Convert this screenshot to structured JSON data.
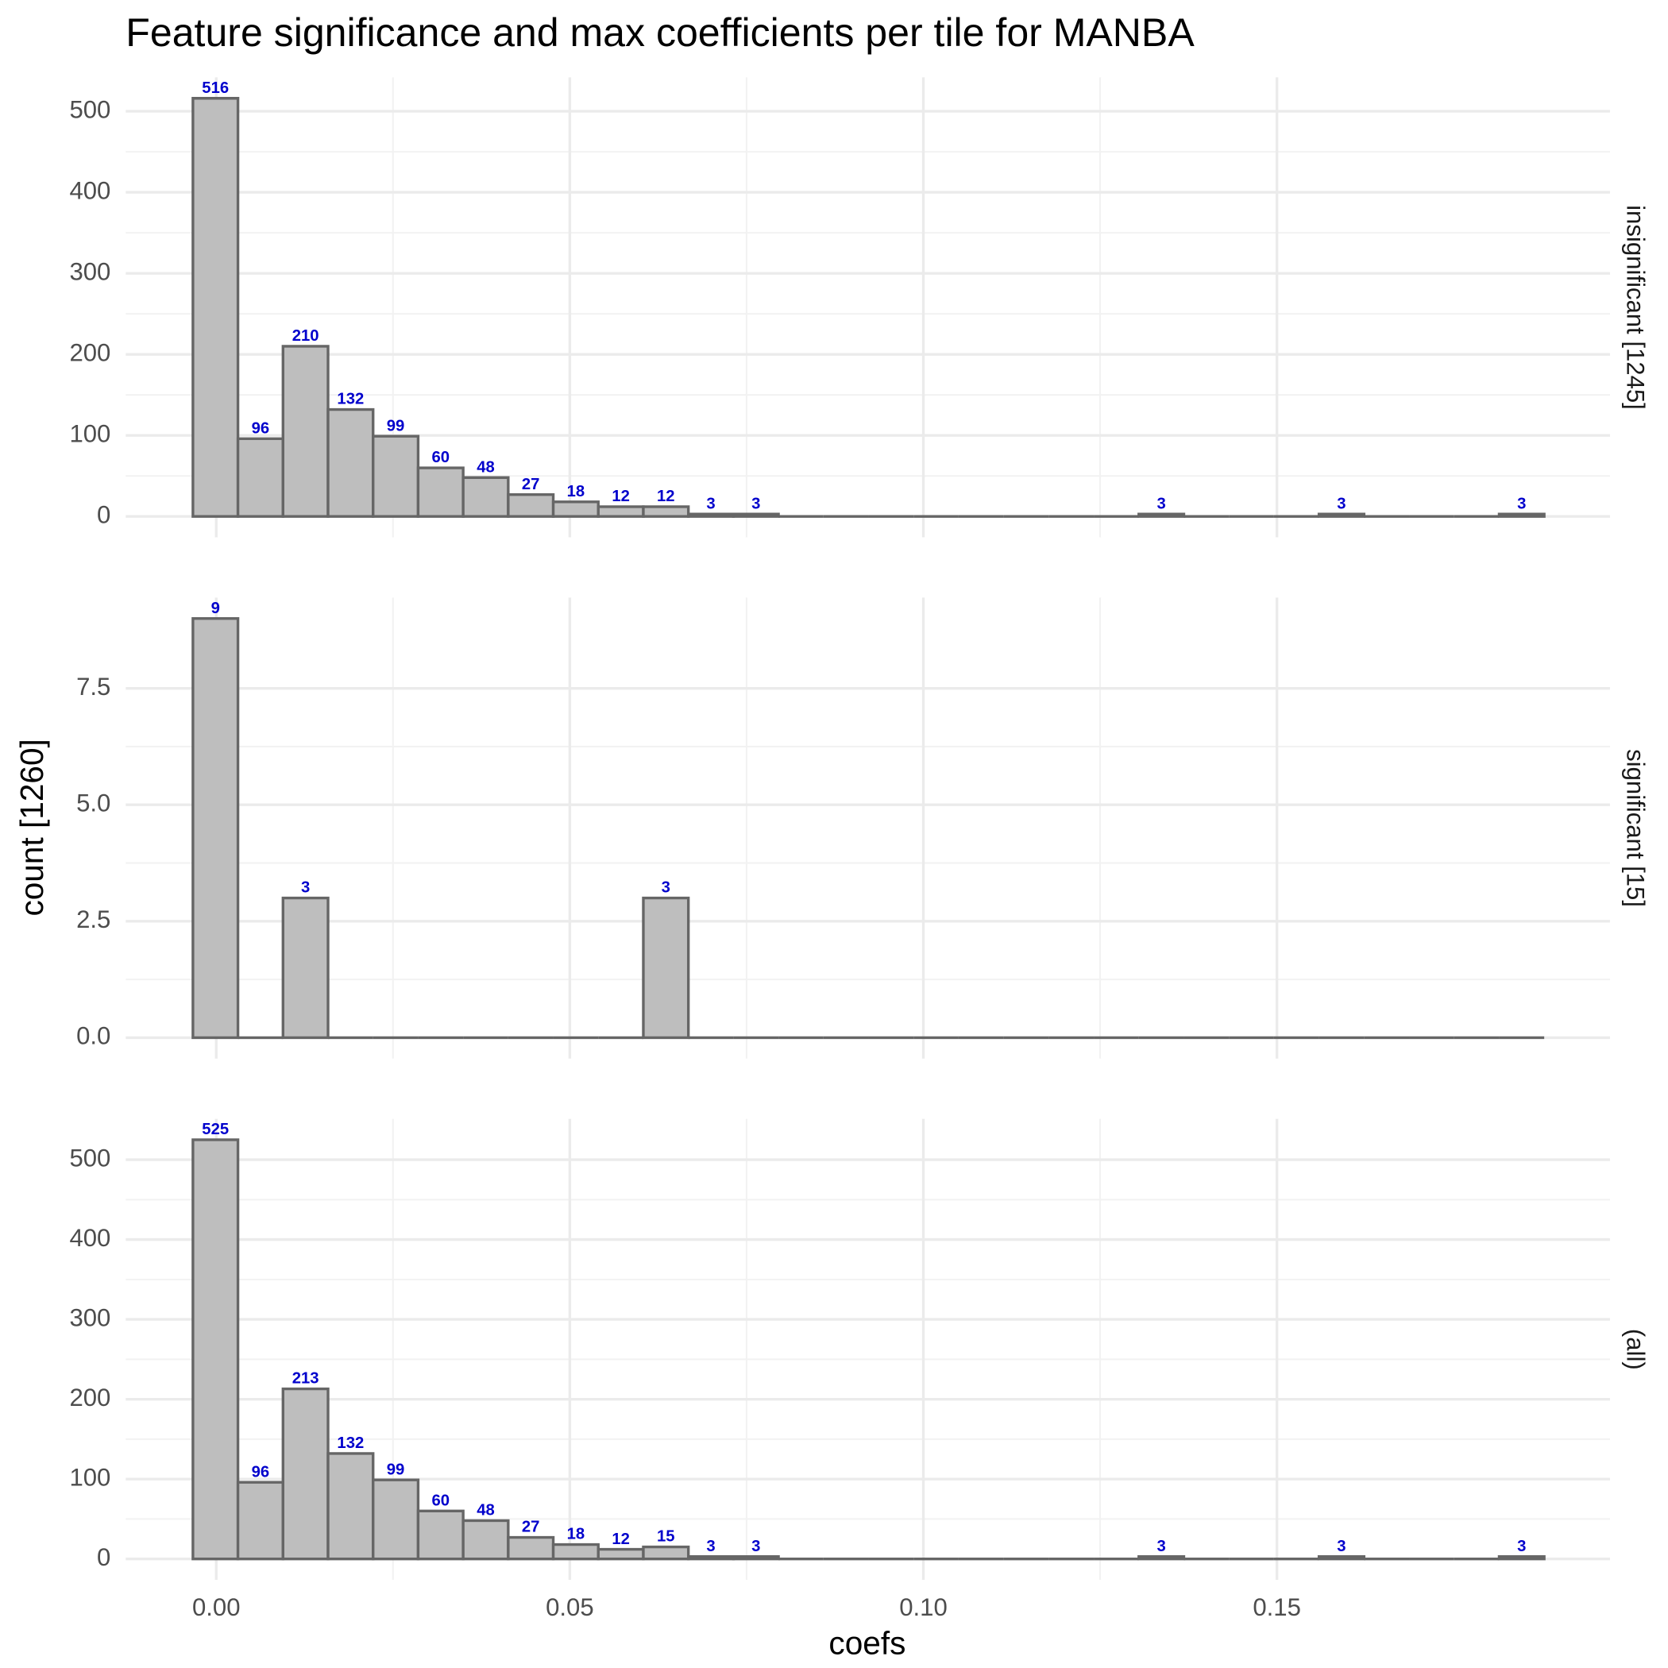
{
  "chart_data": [
    {
      "type": "histogram",
      "title": "Feature significance and max coefficients per tile for MANBA",
      "y_label": "count [1260]",
      "facet_label": "insignificant [1245]",
      "bins": [
        -0.0033,
        0.00307,
        0.00944,
        0.01581,
        0.02218,
        0.02855,
        0.03492,
        0.04129,
        0.04766,
        0.05403,
        0.0604,
        0.06677,
        0.07314,
        0.07951,
        0.08588,
        0.09225,
        0.09862,
        0.10499,
        0.11136,
        0.11773,
        0.1241,
        0.13047,
        0.13684,
        0.14321,
        0.14958,
        0.15595,
        0.16232,
        0.16869,
        0.17506,
        0.18143,
        0.1878
      ],
      "values": [
        516,
        96,
        210,
        132,
        99,
        60,
        48,
        27,
        18,
        12,
        12,
        3,
        3,
        0,
        0,
        0,
        0,
        0,
        0,
        0,
        0,
        3,
        0,
        0,
        0,
        3,
        0,
        0,
        0,
        3
      ],
      "color": "#bebebe",
      "label_color": "#0000cc",
      "xlim": [
        -0.0128,
        0.1971
      ],
      "ylim": [
        -25.8,
        541.8
      ],
      "xticks": [
        {
          "value": 0,
          "label": "0.00"
        },
        {
          "value": 0.05,
          "label": "0.05"
        },
        {
          "value": 0.1,
          "label": "0.10"
        },
        {
          "value": 0.15,
          "label": "0.15"
        }
      ],
      "yticks": [
        0,
        100,
        200,
        300,
        400,
        500
      ],
      "grid": true
    },
    {
      "type": "histogram",
      "facet_label": "significant [15]",
      "bins": [
        -0.0033,
        0.00307,
        0.00944,
        0.01581,
        0.02218,
        0.02855,
        0.03492,
        0.04129,
        0.04766,
        0.05403,
        0.0604,
        0.06677,
        0.07314,
        0.07951,
        0.08588,
        0.09225,
        0.09862,
        0.10499,
        0.11136,
        0.11773,
        0.1241,
        0.13047,
        0.13684,
        0.14321,
        0.14958,
        0.15595,
        0.16232,
        0.16869,
        0.17506,
        0.18143,
        0.1878
      ],
      "values": [
        9,
        0,
        3,
        0,
        0,
        0,
        0,
        0,
        0,
        0,
        3,
        0,
        0,
        0,
        0,
        0,
        0,
        0,
        0,
        0,
        0,
        0,
        0,
        0,
        0,
        0,
        0,
        0,
        0,
        0
      ],
      "color": "#bebebe",
      "label_color": "#0000cc",
      "xlim": [
        -0.0128,
        0.1971
      ],
      "ylim": [
        -0.45,
        9.45
      ],
      "xticks": [
        {
          "value": 0,
          "label": "0.00"
        },
        {
          "value": 0.05,
          "label": "0.05"
        },
        {
          "value": 0.1,
          "label": "0.10"
        },
        {
          "value": 0.15,
          "label": "0.15"
        }
      ],
      "yticks": [
        {
          "value": 0,
          "label": "0.0"
        },
        2.5,
        {
          "value": 5,
          "label": "5.0"
        },
        7.5
      ],
      "grid": true
    },
    {
      "type": "histogram",
      "facet_label": "(all)",
      "x_label": "coefs",
      "bins": [
        -0.0033,
        0.00307,
        0.00944,
        0.01581,
        0.02218,
        0.02855,
        0.03492,
        0.04129,
        0.04766,
        0.05403,
        0.0604,
        0.06677,
        0.07314,
        0.07951,
        0.08588,
        0.09225,
        0.09862,
        0.10499,
        0.11136,
        0.11773,
        0.1241,
        0.13047,
        0.13684,
        0.14321,
        0.14958,
        0.15595,
        0.16232,
        0.16869,
        0.17506,
        0.18143,
        0.1878
      ],
      "values": [
        525,
        96,
        213,
        132,
        99,
        60,
        48,
        27,
        18,
        12,
        15,
        3,
        3,
        0,
        0,
        0,
        0,
        0,
        0,
        0,
        0,
        3,
        0,
        0,
        0,
        3,
        0,
        0,
        0,
        3
      ],
      "color": "#bebebe",
      "label_color": "#0000cc",
      "xlim": [
        -0.0128,
        0.1971
      ],
      "ylim": [
        -26.25,
        551.25
      ],
      "xticks": [
        {
          "value": 0,
          "label": "0.00"
        },
        {
          "value": 0.05,
          "label": "0.05"
        },
        {
          "value": 0.1,
          "label": "0.10"
        },
        {
          "value": 0.15,
          "label": "0.15"
        }
      ],
      "yticks": [
        0,
        100,
        200,
        300,
        400,
        500
      ],
      "grid": true
    }
  ]
}
